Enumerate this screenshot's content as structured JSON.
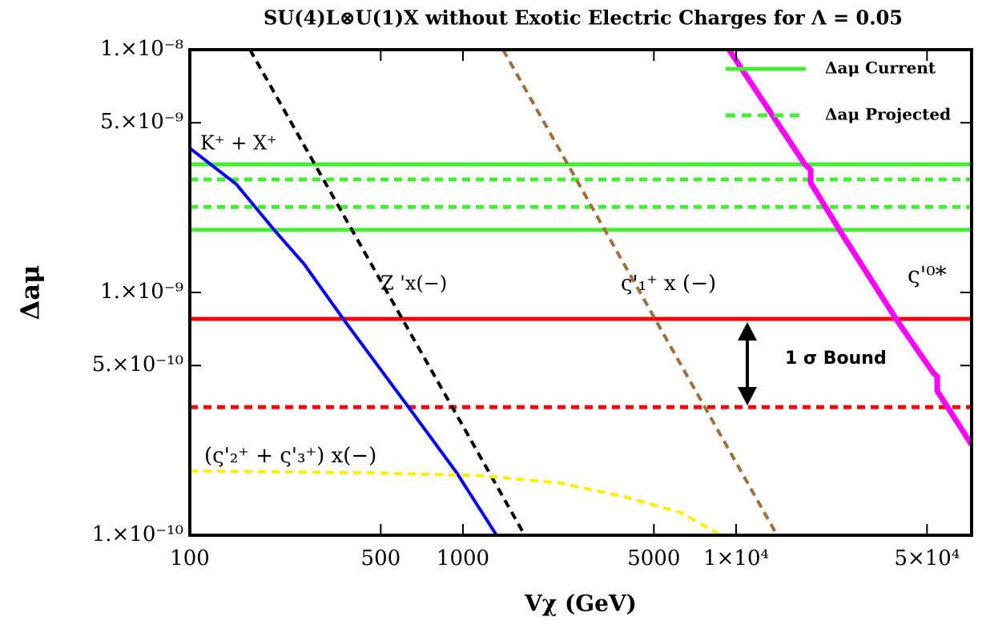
{
  "chart_data": {
    "type": "line",
    "title": "SU(4)L⊗U(1)X without Exotic Electric Charges for  Λ = 0.05",
    "x_label": "Vχ (GeV)",
    "y_label": "Δaμ",
    "log_x": true,
    "log_y": true,
    "legend": "upper right",
    "xlim": [
      100,
      72800
    ],
    "ylim": [
      1e-10,
      1e-08
    ],
    "xticks": [
      100,
      500,
      1000,
      5000,
      {
        "value": 10000,
        "label": "1×10⁴"
      },
      {
        "value": 50000,
        "label": "5×10⁴"
      }
    ],
    "yticks": [
      {
        "value": 1e-08,
        "label": "1.×10⁻⁸"
      },
      {
        "value": 5e-09,
        "label": "5.×10⁻⁹"
      },
      {
        "value": 1e-09,
        "label": "1.×10⁻⁹"
      },
      {
        "value": 5e-10,
        "label": "5.×10⁻¹⁰"
      },
      {
        "value": 1e-10,
        "label": "1.×10⁻¹⁰"
      }
    ],
    "series": [
      {
        "name": "Δaμ Current",
        "kind": "hline",
        "color": "#44ee33",
        "dash": false,
        "values": [
          3.37e-09,
          1.81e-09
        ]
      },
      {
        "name": "Δaμ Projected",
        "kind": "hline",
        "color": "#44ee33",
        "dash": true,
        "values": [
          2.92e-09,
          2.25e-09
        ]
      },
      {
        "kind": "hline",
        "color": "#ff0000",
        "dash": false,
        "values": [
          7.78e-10
        ]
      },
      {
        "kind": "hline",
        "color": "#ff0000",
        "dash": true,
        "values": [
          3.37e-10
        ]
      },
      {
        "kind": "curve",
        "color": "#0000ff",
        "dash": false,
        "x": [
          100,
          148,
          207,
          262,
          368,
          632,
          948,
          1327
        ],
        "values": [
          3.93e-09,
          2.79e-09,
          1.77e-09,
          1.31e-09,
          7.66e-10,
          3.37e-10,
          1.81e-10,
          1e-10
        ]
      },
      {
        "kind": "curve",
        "color": "#000000",
        "dash": true,
        "x": [
          166,
          1683
        ],
        "values": [
          1e-08,
          1e-10
        ]
      },
      {
        "kind": "curve",
        "color": "#a0703c",
        "dash": true,
        "x": [
          1402,
          14130
        ],
        "values": [
          1e-08,
          1e-10
        ]
      },
      {
        "kind": "curve",
        "color": "#ff00ff",
        "dash": false,
        "width": 7,
        "x": [
          9420,
          17860,
          18750,
          18750,
          24200,
          38860,
          52600,
          54500,
          54500,
          72800
        ],
        "values": [
          1e-08,
          3.37e-09,
          3.2e-09,
          2.83e-09,
          1.77e-09,
          7.66e-10,
          4.68e-10,
          4.5e-10,
          3.93e-10,
          2.36e-10
        ]
      },
      {
        "kind": "curve",
        "color": "#ffee00",
        "dash": true,
        "x": [
          100,
          421,
          1161,
          2279,
          3910,
          6280,
          8790
        ],
        "values": [
          1.84e-10,
          1.81e-10,
          1.76e-10,
          1.64e-10,
          1.44e-10,
          1.24e-10,
          1e-10
        ]
      }
    ],
    "annotations": [
      "K⁺ + X⁺",
      "Z 'x(−)",
      "ς'₁⁺ x (−)",
      "ς'⁰*",
      "(ς'₂⁺ + ς'₃⁺) x(−)",
      "1 σ Bound"
    ]
  }
}
